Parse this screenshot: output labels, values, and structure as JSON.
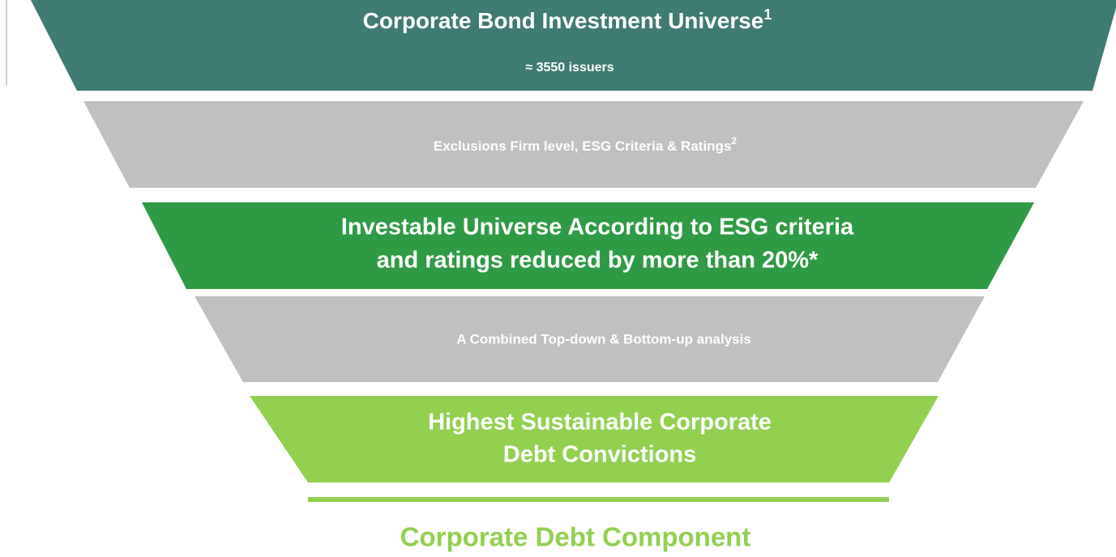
{
  "levels": [
    {
      "lines": [
        "Corporate Bond Investment Universe"
      ],
      "sup": "1",
      "subtitle": "≈ 3550 issuers"
    },
    {
      "lines": [
        "Exclusions Firm level, ESG Criteria & Ratings"
      ],
      "sup": "2"
    },
    {
      "lines": [
        "Investable Universe According to ESG criteria",
        "and ratings reduced by more than 20%*"
      ]
    },
    {
      "lines": [
        "A Combined Top-down & Bottom-up analysis"
      ]
    },
    {
      "lines": [
        "Highest Sustainable Corporate",
        "Debt Convictions"
      ]
    }
  ],
  "result": "Corporate Debt Component"
}
